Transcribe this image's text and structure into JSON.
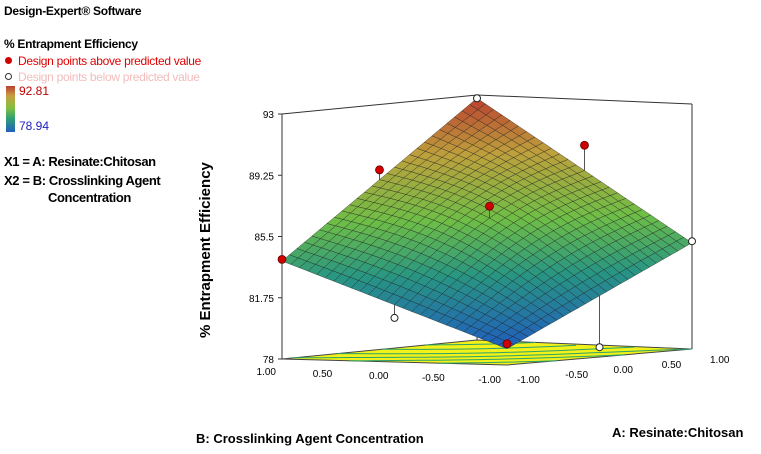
{
  "software_label": "Design-Expert® Software",
  "legend": {
    "response": "% Entrapment Efficiency",
    "above_label": "Design points above predicted value",
    "below_label": "Design points below predicted value",
    "colorbar_max": "92.81",
    "colorbar_min": "78.94",
    "x1_label": "X1 = A: Resinate:Chitosan",
    "x2_label_line1": "X2 = B: Crosslinking Agent",
    "x2_label_line2": "Concentration",
    "colors": {
      "above": "#d00000",
      "below": "#ffffff",
      "high": "#b84030",
      "low": "#2060c0"
    }
  },
  "chart_data": {
    "type": "surface3d",
    "title": "",
    "zlabel": "% Entrapment Efficiency",
    "xlabel": "A: Resinate:Chitosan",
    "ylabel": "B: Crosslinking Agent Concentration",
    "xlim": [
      -1,
      1
    ],
    "ylim": [
      -1,
      1
    ],
    "zlim": [
      78,
      93
    ],
    "z_ticks": [
      "78",
      "81.75",
      "85.5",
      "89.25",
      "93"
    ],
    "x_ticks": [
      "-1.00",
      "-0.50",
      "0.00",
      "0.50",
      "1.00"
    ],
    "y_ticks": [
      "-1.00",
      "-0.50",
      "0.00",
      "0.50",
      "1.00"
    ],
    "surface_corners": {
      "a_-1_b_-1": 79.0,
      "a_1_b_-1": 84.5,
      "a_-1_b_1": 84.0,
      "a_1_b_1": 92.8
    },
    "design_points": [
      {
        "a": -1,
        "b": -1,
        "z": 79.3,
        "position": "above"
      },
      {
        "a": 0,
        "b": -1,
        "z": 78.6,
        "position": "below"
      },
      {
        "a": 1,
        "b": -1,
        "z": 84.6,
        "position": "below"
      },
      {
        "a": -1,
        "b": 0,
        "z": 80.7,
        "position": "below"
      },
      {
        "a": 0,
        "b": 0,
        "z": 87.0,
        "position": "above"
      },
      {
        "a": 1,
        "b": 0,
        "z": 90.2,
        "position": "above"
      },
      {
        "a": -1,
        "b": 1,
        "z": 84.1,
        "position": "above"
      },
      {
        "a": 0,
        "b": 1,
        "z": 89.0,
        "position": "above"
      },
      {
        "a": 1,
        "b": 1,
        "z": 92.8,
        "position": "below"
      }
    ]
  }
}
